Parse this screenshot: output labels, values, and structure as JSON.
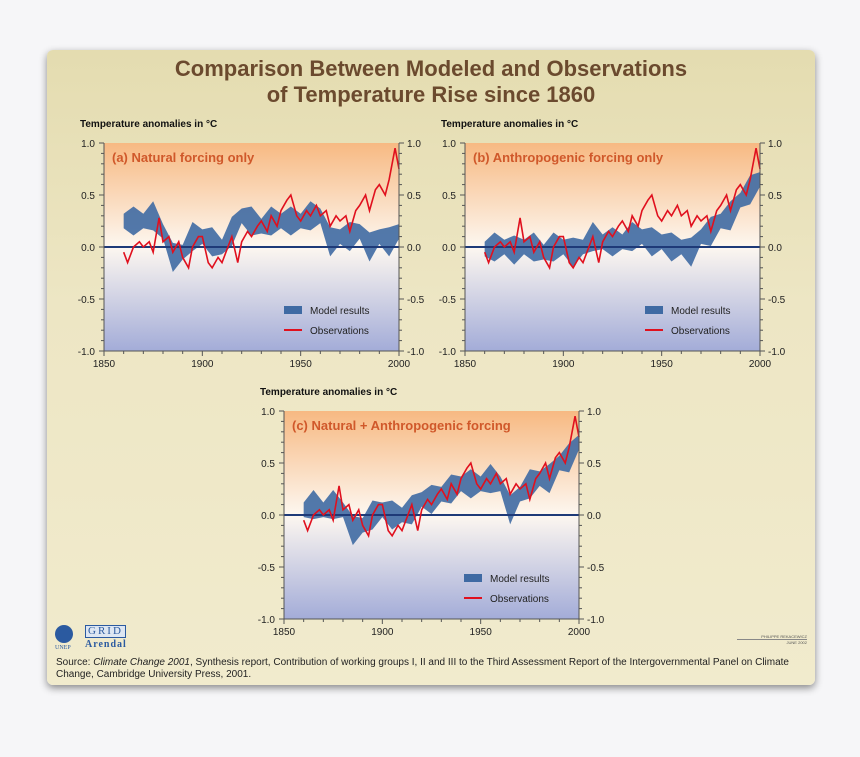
{
  "title_line1": "Comparison Between Modeled and Observations",
  "title_line2": "of Temperature Rise since 1860",
  "logos": {
    "unep": "UNEP",
    "grid": "GRID",
    "arendal": "Arendal"
  },
  "credit": {
    "author": "PHILIPPE REKACEWICZ",
    "date": "JUNE 2002"
  },
  "source": {
    "prefix": "Source: ",
    "work": "Climate Change 2001",
    "rest": ", Synthesis report, Contribution of working groups I, II and III to the Third Assessment Report of the Intergovernmental Panel on Climate Change, Cambridge University Press, 2001."
  },
  "colors": {
    "model": "#3f6aa3",
    "observations": "#e0101e",
    "zero_line": "#1e3a78",
    "title": "#6b4a2e",
    "panel_label": "#d0582a"
  },
  "chart_data": [
    {
      "type": "area",
      "title": "(a) Natural forcing only",
      "ylabel": "Temperature anomalies in °C",
      "xlim": [
        1850,
        2000
      ],
      "ylim": [
        -1.0,
        1.0
      ],
      "xticks": [
        "1850",
        "1900",
        "1950",
        "2000"
      ],
      "yticks": [
        "1.0",
        "0.5",
        "0.0",
        "-0.5",
        "-1.0"
      ],
      "legend": {
        "placement": "bottom-right",
        "entries": [
          "Model results",
          "Observations"
        ]
      },
      "x": [
        1860,
        1865,
        1870,
        1875,
        1880,
        1885,
        1890,
        1895,
        1900,
        1905,
        1910,
        1915,
        1920,
        1925,
        1930,
        1935,
        1940,
        1945,
        1950,
        1955,
        1960,
        1965,
        1970,
        1975,
        1980,
        1985,
        1990,
        1995,
        2000
      ],
      "model_center": [
        0.25,
        0.25,
        0.25,
        0.3,
        0.15,
        -0.1,
        -0.05,
        0.1,
        0.1,
        0.05,
        0.0,
        0.15,
        0.3,
        0.25,
        0.2,
        0.25,
        0.25,
        0.25,
        0.25,
        0.3,
        0.3,
        0.05,
        0.1,
        0.1,
        0.15,
        0.0,
        0.1,
        0.05,
        0.15
      ],
      "model_halfwidth": 0.1
    },
    {
      "type": "area",
      "title": "(b) Anthropogenic forcing only",
      "ylabel": "Temperature anomalies in °C",
      "xlim": [
        1850,
        2000
      ],
      "ylim": [
        -1.0,
        1.0
      ],
      "xticks": [
        "1850",
        "1900",
        "1950",
        "2000"
      ],
      "yticks": [
        "1.0",
        "0.5",
        "0.0",
        "-0.5",
        "-1.0"
      ],
      "legend": {
        "placement": "bottom-right",
        "entries": [
          "Model results",
          "Observations"
        ]
      },
      "x": [
        1860,
        1865,
        1870,
        1875,
        1880,
        1885,
        1890,
        1895,
        1900,
        1905,
        1910,
        1915,
        1920,
        1925,
        1930,
        1935,
        1940,
        1945,
        1950,
        1955,
        1960,
        1965,
        1970,
        1975,
        1980,
        1985,
        1990,
        1995,
        2000
      ],
      "model_center": [
        -0.02,
        0.0,
        0.0,
        -0.03,
        0.0,
        0.0,
        -0.05,
        0.0,
        0.0,
        -0.05,
        0.0,
        0.1,
        0.05,
        0.05,
        0.05,
        0.1,
        0.1,
        0.05,
        0.05,
        0.0,
        0.0,
        -0.05,
        0.1,
        0.15,
        0.25,
        0.3,
        0.45,
        0.55,
        0.65
      ],
      "model_halfwidth": 0.1
    },
    {
      "type": "area",
      "title": "(c) Natural + Anthropogenic forcing",
      "ylabel": "Temperature anomalies in °C",
      "xlim": [
        1850,
        2000
      ],
      "ylim": [
        -1.0,
        1.0
      ],
      "xticks": [
        "1850",
        "1900",
        "1950",
        "2000"
      ],
      "yticks": [
        "1.0",
        "0.5",
        "0.0",
        "-0.5",
        "-1.0"
      ],
      "legend": {
        "placement": "bottom-right",
        "entries": [
          "Model results",
          "Observations"
        ]
      },
      "x": [
        1860,
        1865,
        1870,
        1875,
        1880,
        1885,
        1890,
        1895,
        1900,
        1905,
        1910,
        1915,
        1920,
        1925,
        1930,
        1935,
        1940,
        1945,
        1950,
        1955,
        1960,
        1965,
        1970,
        1975,
        1980,
        1985,
        1990,
        1995,
        2000
      ],
      "model_center": [
        0.05,
        0.1,
        0.05,
        0.1,
        0.05,
        -0.15,
        -0.1,
        0.0,
        0.05,
        0.0,
        0.0,
        0.05,
        0.15,
        0.15,
        0.2,
        0.25,
        0.3,
        0.3,
        0.3,
        0.35,
        0.3,
        0.05,
        0.2,
        0.3,
        0.35,
        0.35,
        0.5,
        0.55,
        0.7
      ],
      "model_halfwidth": 0.1
    }
  ],
  "observations": {
    "x": [
      1860,
      1862,
      1865,
      1868,
      1870,
      1873,
      1875,
      1878,
      1880,
      1883,
      1885,
      1888,
      1890,
      1893,
      1895,
      1898,
      1900,
      1903,
      1905,
      1908,
      1910,
      1913,
      1915,
      1918,
      1920,
      1923,
      1925,
      1928,
      1930,
      1933,
      1935,
      1938,
      1940,
      1943,
      1945,
      1948,
      1950,
      1953,
      1955,
      1958,
      1960,
      1963,
      1965,
      1968,
      1970,
      1973,
      1975,
      1978,
      1980,
      1983,
      1985,
      1988,
      1990,
      1993,
      1995,
      1998,
      2000
    ],
    "y": [
      -0.05,
      -0.15,
      0.0,
      0.05,
      0.0,
      0.05,
      -0.05,
      0.28,
      0.05,
      0.1,
      -0.05,
      0.05,
      -0.1,
      -0.2,
      0.0,
      0.1,
      0.1,
      -0.15,
      -0.2,
      -0.1,
      -0.15,
      0.0,
      0.1,
      -0.15,
      0.05,
      0.15,
      0.1,
      0.2,
      0.25,
      0.15,
      0.3,
      0.2,
      0.35,
      0.45,
      0.5,
      0.3,
      0.25,
      0.35,
      0.3,
      0.4,
      0.3,
      0.35,
      0.2,
      0.3,
      0.25,
      0.3,
      0.15,
      0.35,
      0.4,
      0.5,
      0.35,
      0.55,
      0.6,
      0.5,
      0.65,
      0.95,
      0.75
    ]
  }
}
